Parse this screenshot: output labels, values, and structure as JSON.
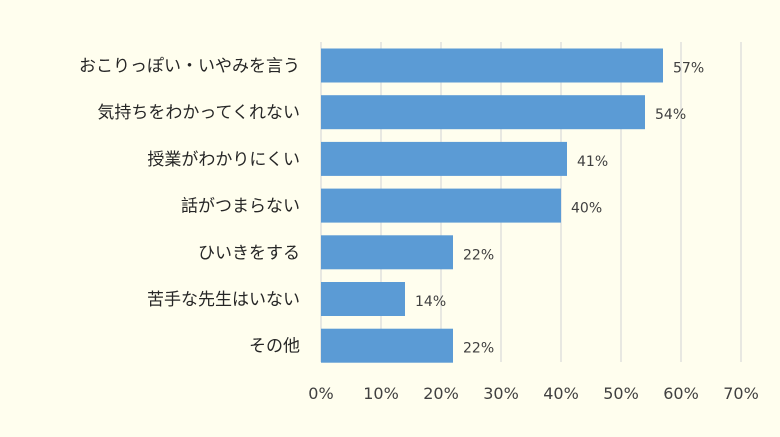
{
  "chart_data": {
    "type": "bar",
    "orientation": "horizontal",
    "categories": [
      "おこりっぽい・いやみを言う",
      "気持ちをわかってくれない",
      "授業がわかりにくい",
      "話がつまらない",
      "ひいきをする",
      "苦手な先生はいない",
      "その他"
    ],
    "values": [
      57,
      54,
      41,
      40,
      22,
      14,
      22
    ],
    "value_labels": [
      "57%",
      "54%",
      "41%",
      "40%",
      "22%",
      "14%",
      "22%"
    ],
    "xlim": [
      0,
      70
    ],
    "x_ticks": [
      0,
      10,
      20,
      30,
      40,
      50,
      60,
      70
    ],
    "x_tick_labels": [
      "0%",
      "10%",
      "20%",
      "30%",
      "40%",
      "50%",
      "60%",
      "70%"
    ],
    "grid": "vertical",
    "bar_color": "#5B9BD5",
    "grid_color": "#D9D9D9",
    "background": "#FFFEEE"
  }
}
